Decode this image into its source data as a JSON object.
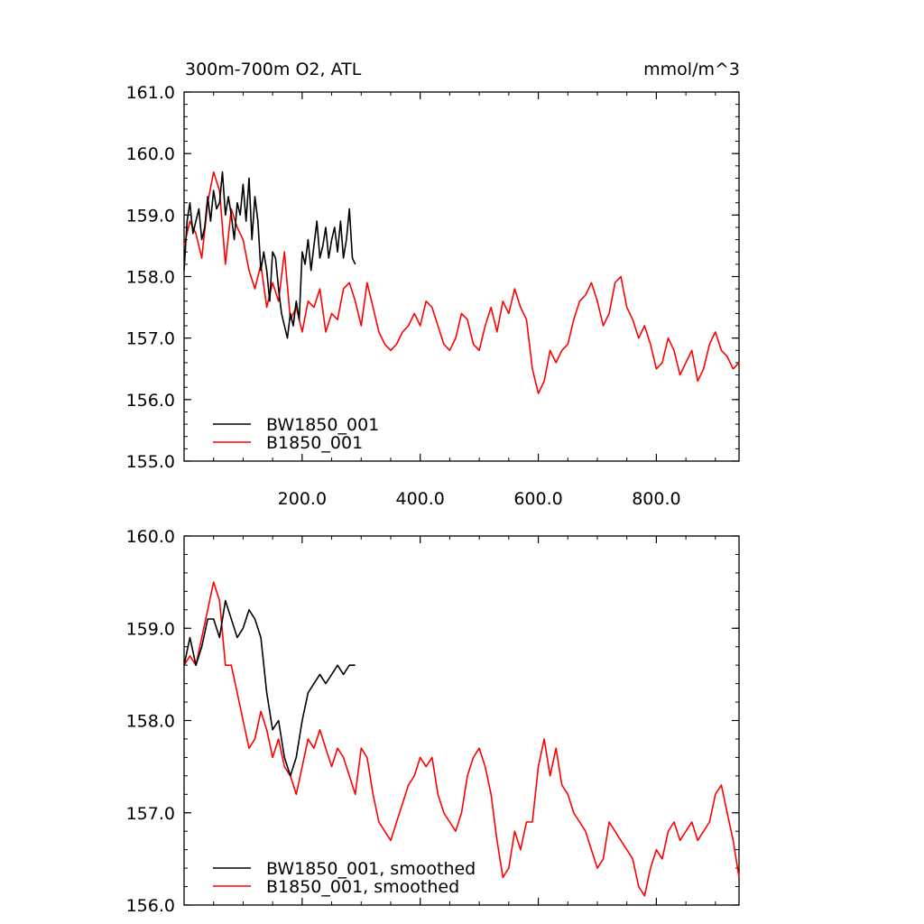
{
  "chart_data": [
    {
      "type": "line",
      "title": "300m-700m O2, ATL",
      "units": "mmol/m^3",
      "xlim": [
        0,
        940
      ],
      "ylim": [
        155.0,
        161.0
      ],
      "x_ticks": [
        "200.0",
        "400.0",
        "600.0",
        "800.0"
      ],
      "y_ticks": [
        "155.0",
        "156.0",
        "157.0",
        "158.0",
        "159.0",
        "160.0",
        "161.0"
      ],
      "legend_position": "bottom-left",
      "series": [
        {
          "name": "BW1850_001",
          "color": "#000000",
          "x": [
            0,
            5,
            10,
            15,
            20,
            25,
            30,
            35,
            40,
            45,
            50,
            55,
            60,
            65,
            70,
            75,
            80,
            85,
            90,
            95,
            100,
            105,
            110,
            115,
            120,
            125,
            130,
            135,
            140,
            145,
            150,
            155,
            160,
            165,
            170,
            175,
            180,
            185,
            190,
            195,
            200,
            205,
            210,
            215,
            220,
            225,
            230,
            235,
            240,
            245,
            250,
            255,
            260,
            265,
            270,
            275,
            280,
            285,
            290
          ],
          "y": [
            158.1,
            158.9,
            159.2,
            158.7,
            158.9,
            159.1,
            158.6,
            158.8,
            159.3,
            158.9,
            159.4,
            159.1,
            159.2,
            159.7,
            159.0,
            159.3,
            159.0,
            158.6,
            159.2,
            159.0,
            159.5,
            158.9,
            159.6,
            158.6,
            159.3,
            158.9,
            158.1,
            158.4,
            158.1,
            157.6,
            158.4,
            158.3,
            157.8,
            157.4,
            157.2,
            157.0,
            157.4,
            157.2,
            157.6,
            157.3,
            158.4,
            158.2,
            158.6,
            158.1,
            158.5,
            158.9,
            158.3,
            158.5,
            158.8,
            158.3,
            158.6,
            158.8,
            158.4,
            158.9,
            158.3,
            158.6,
            159.1,
            158.3,
            158.2
          ]
        },
        {
          "name": "B1850_001",
          "color": "#ff0000",
          "x": [
            0,
            10,
            20,
            30,
            40,
            50,
            60,
            70,
            80,
            90,
            100,
            110,
            120,
            130,
            140,
            150,
            160,
            170,
            180,
            190,
            200,
            210,
            220,
            230,
            240,
            250,
            260,
            270,
            280,
            290,
            300,
            310,
            320,
            330,
            340,
            350,
            360,
            370,
            380,
            390,
            400,
            410,
            420,
            430,
            440,
            450,
            460,
            470,
            480,
            490,
            500,
            510,
            520,
            530,
            540,
            550,
            560,
            570,
            580,
            590,
            600,
            610,
            620,
            630,
            640,
            650,
            660,
            670,
            680,
            690,
            700,
            710,
            720,
            730,
            740,
            750,
            760,
            770,
            780,
            790,
            800,
            810,
            820,
            830,
            840,
            850,
            860,
            870,
            880,
            890,
            900,
            910,
            920,
            930,
            940
          ],
          "y": [
            158.5,
            158.9,
            158.7,
            158.3,
            159.2,
            159.7,
            159.4,
            158.2,
            159.1,
            158.8,
            158.6,
            158.1,
            157.8,
            158.2,
            157.5,
            157.9,
            157.6,
            158.4,
            157.3,
            157.5,
            157.1,
            157.6,
            157.5,
            157.8,
            157.1,
            157.4,
            157.3,
            157.8,
            157.9,
            157.6,
            157.2,
            157.9,
            157.5,
            157.1,
            156.9,
            156.8,
            156.9,
            157.1,
            157.2,
            157.4,
            157.2,
            157.6,
            157.5,
            157.2,
            156.9,
            156.8,
            157.0,
            157.4,
            157.3,
            156.9,
            156.8,
            157.2,
            157.5,
            157.1,
            157.6,
            157.4,
            157.8,
            157.5,
            157.3,
            156.5,
            156.1,
            156.3,
            156.8,
            156.6,
            156.8,
            156.9,
            157.3,
            157.6,
            157.7,
            157.9,
            157.6,
            157.2,
            157.4,
            157.9,
            158.0,
            157.5,
            157.3,
            157.0,
            157.2,
            156.9,
            156.5,
            156.6,
            157.0,
            156.8,
            156.4,
            156.6,
            156.8,
            156.3,
            156.5,
            156.9,
            157.1,
            156.8,
            156.7,
            156.5,
            156.6
          ],
          "y_note": ""
        }
      ]
    },
    {
      "type": "line",
      "xlim": [
        0,
        940
      ],
      "ylim": [
        156.0,
        160.0
      ],
      "x_ticks": [],
      "y_ticks": [
        "156.0",
        "157.0",
        "158.0",
        "159.0",
        "160.0"
      ],
      "legend_position": "bottom-left",
      "series": [
        {
          "name": "BW1850_001, smoothed",
          "color": "#000000",
          "x": [
            0,
            10,
            20,
            30,
            40,
            50,
            60,
            70,
            80,
            90,
            100,
            110,
            120,
            130,
            140,
            150,
            160,
            170,
            180,
            190,
            200,
            210,
            220,
            230,
            240,
            250,
            260,
            270,
            280,
            290
          ],
          "y": [
            158.6,
            158.9,
            158.6,
            158.8,
            159.1,
            159.1,
            158.9,
            159.3,
            159.1,
            158.9,
            159.0,
            159.2,
            159.1,
            158.9,
            158.3,
            157.9,
            158.0,
            157.6,
            157.4,
            157.6,
            158.0,
            158.3,
            158.4,
            158.5,
            158.4,
            158.5,
            158.6,
            158.5,
            158.6,
            158.6
          ]
        },
        {
          "name": "B1850_001, smoothed",
          "color": "#ff0000",
          "x": [
            0,
            10,
            20,
            30,
            40,
            50,
            60,
            70,
            80,
            90,
            100,
            110,
            120,
            130,
            140,
            150,
            160,
            170,
            180,
            190,
            200,
            210,
            220,
            230,
            240,
            250,
            260,
            270,
            280,
            290,
            300,
            310,
            320,
            330,
            340,
            350,
            360,
            370,
            380,
            390,
            400,
            410,
            420,
            430,
            440,
            450,
            460,
            470,
            480,
            490,
            500,
            510,
            520,
            530,
            540,
            550,
            560,
            570,
            580,
            590,
            600,
            610,
            620,
            630,
            640,
            650,
            660,
            670,
            680,
            690,
            700,
            710,
            720,
            730,
            740,
            750,
            760,
            770,
            780,
            790,
            800,
            810,
            820,
            830,
            840,
            850,
            860,
            870,
            880,
            890,
            900,
            910,
            920,
            930,
            940
          ],
          "y": [
            158.6,
            158.7,
            158.6,
            158.9,
            159.2,
            159.5,
            159.3,
            158.6,
            158.6,
            158.3,
            158.0,
            157.7,
            157.8,
            158.1,
            157.9,
            157.6,
            157.8,
            157.5,
            157.4,
            157.2,
            157.5,
            157.8,
            157.7,
            157.9,
            157.7,
            157.5,
            157.7,
            157.6,
            157.4,
            157.2,
            157.7,
            157.6,
            157.2,
            156.9,
            156.8,
            156.7,
            156.9,
            157.1,
            157.3,
            157.4,
            157.6,
            157.5,
            157.6,
            157.2,
            157.0,
            156.9,
            156.8,
            157.0,
            157.4,
            157.6,
            157.7,
            157.5,
            157.2,
            156.7,
            156.3,
            156.4,
            156.8,
            156.6,
            156.9,
            156.9,
            157.5,
            157.8,
            157.4,
            157.7,
            157.3,
            157.2,
            157.0,
            156.9,
            156.8,
            156.6,
            156.4,
            156.5,
            156.9,
            156.8,
            156.7,
            156.6,
            156.5,
            156.2,
            156.1,
            156.4,
            156.6,
            156.5,
            156.8,
            156.9,
            156.7,
            156.8,
            156.9,
            156.7,
            156.8,
            156.9,
            157.2,
            157.3,
            157.0,
            156.7,
            156.3
          ]
        }
      ]
    }
  ]
}
